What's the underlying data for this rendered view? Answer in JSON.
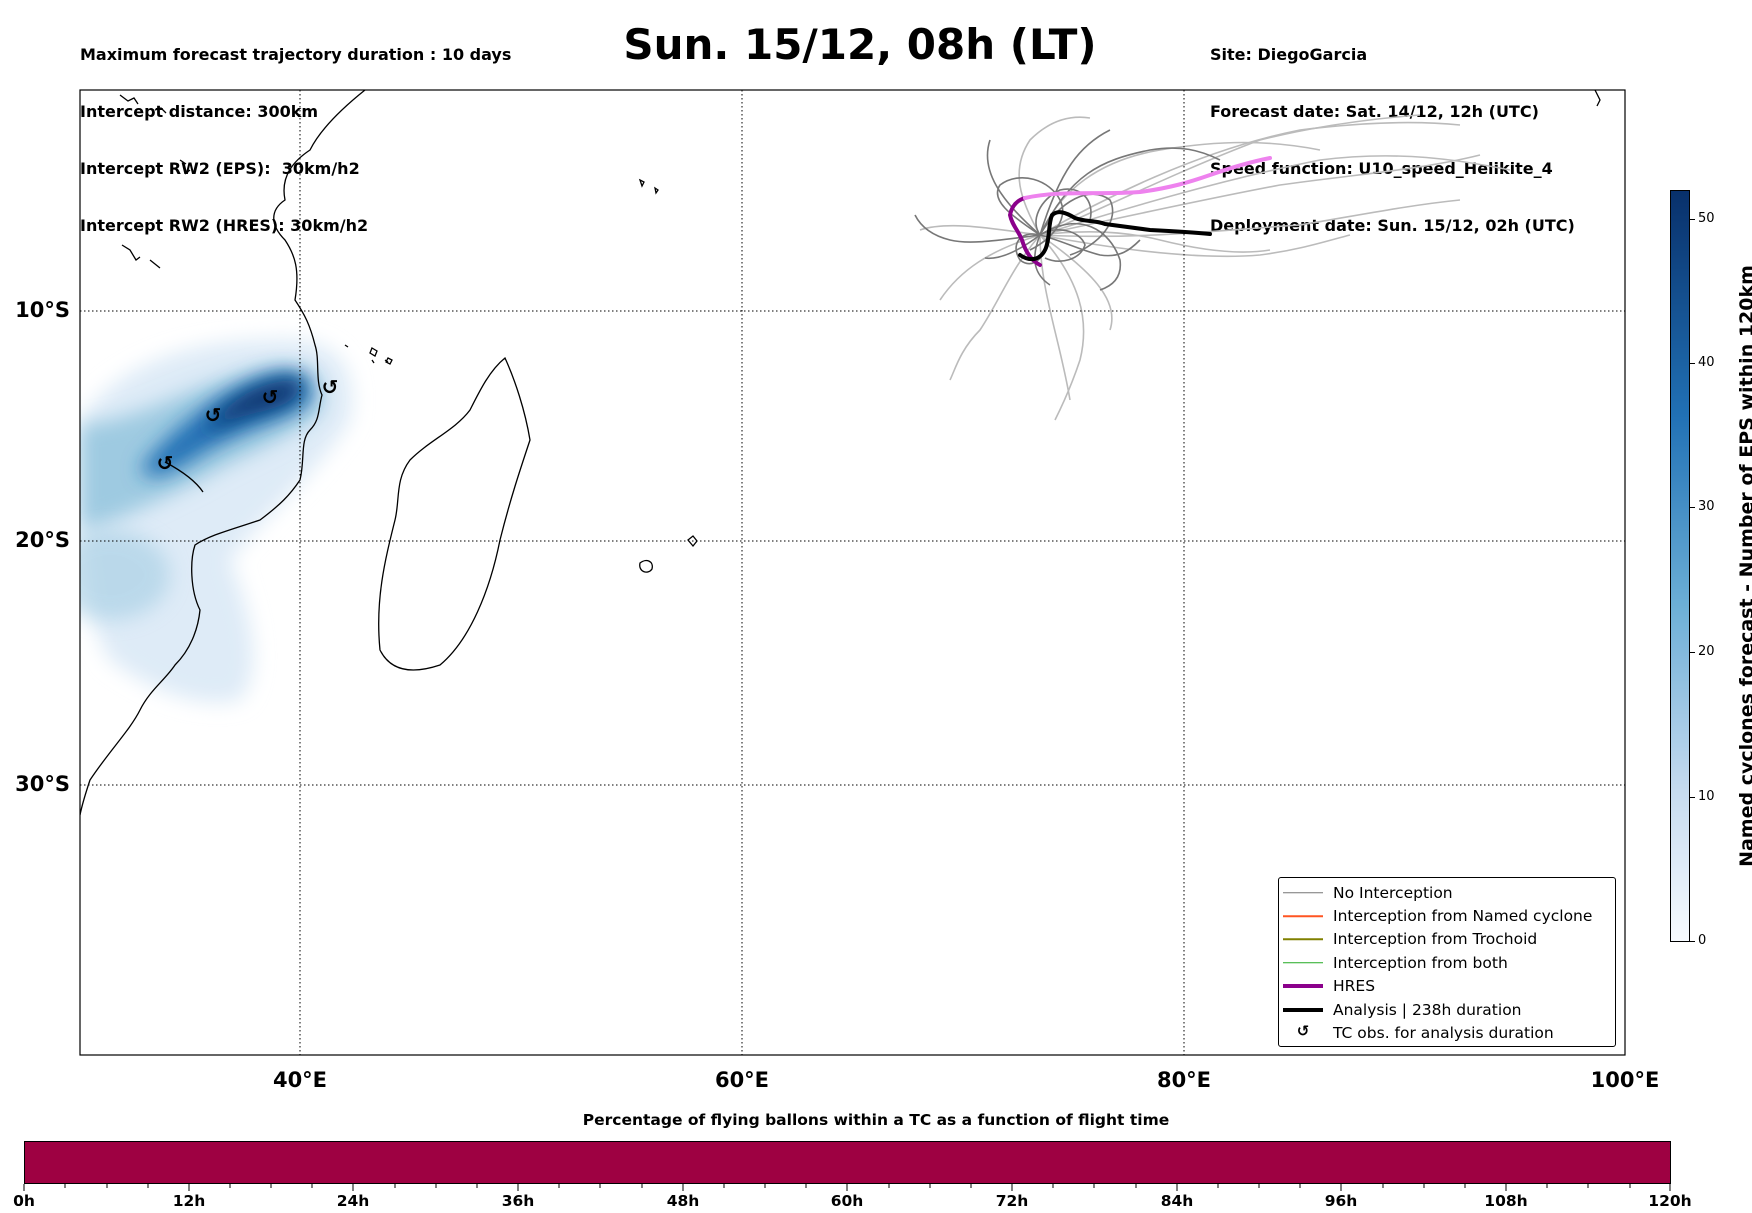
{
  "header": {
    "left_lines": [
      "Maximum forecast trajectory duration : 10 days",
      "Intercept distance: 300km",
      "Intercept RW2 (EPS):  30km/h2",
      "Intercept RW2 (HRES): 30km/h2"
    ],
    "title": "Sun. 15/12, 08h (LT)",
    "right_lines": [
      "Site: DiegoGarcia",
      "Forecast date: Sat. 14/12, 12h (UTC)",
      "Speed function: U10_speed_Helikite_4",
      "Deployment date: Sun. 15/12, 02h (UTC)"
    ]
  },
  "map": {
    "lat_labels": [
      "10°S",
      "20°S",
      "30°S"
    ],
    "lon_labels": [
      "40°E",
      "60°E",
      "80°E",
      "100°E"
    ],
    "extent": {
      "lon_min": 30,
      "lon_max": 100,
      "lat_max": -0.5,
      "lat_min": -42.5
    },
    "gridlines": "dotted",
    "tc_symbol": "↺"
  },
  "legend": {
    "items": [
      {
        "label": "No Interception",
        "color": "#777777",
        "style": "thin"
      },
      {
        "label": "Interception from Named cyclone",
        "color": "#ff5522",
        "style": "thin"
      },
      {
        "label": "Interception from Trochoid",
        "color": "#808000",
        "style": "thin"
      },
      {
        "label": "Interception from both",
        "color": "#22aa22",
        "style": "thin"
      },
      {
        "label": "HRES",
        "color": "#8b008b",
        "style": "thick"
      },
      {
        "label": "Analysis | 238h duration",
        "color": "#000000",
        "style": "thick"
      },
      {
        "label": "TC obs. for analysis duration",
        "color": "#000000",
        "style": "symbol"
      }
    ],
    "placement": "lower-right"
  },
  "colorbar_right": {
    "label": "Named cyclones forecast - Number of EPS within 120km",
    "ticks": [
      "0",
      "10",
      "20",
      "30",
      "40",
      "50"
    ],
    "range": [
      0,
      52
    ],
    "colormap": "Blues"
  },
  "colorbar_bottom": {
    "title": "Percentage of flying ballons within a TC as a function of flight time",
    "ticks": [
      "0h",
      "12h",
      "24h",
      "36h",
      "48h",
      "60h",
      "72h",
      "84h",
      "96h",
      "108h",
      "120h"
    ],
    "fill_color": "#9e0142"
  },
  "colors": {
    "no_interception": "#777777",
    "eps_light": "#bbbbbb",
    "hres_early": "#8b008b",
    "hres_late": "#ee82ee",
    "analysis": "#000000"
  }
}
